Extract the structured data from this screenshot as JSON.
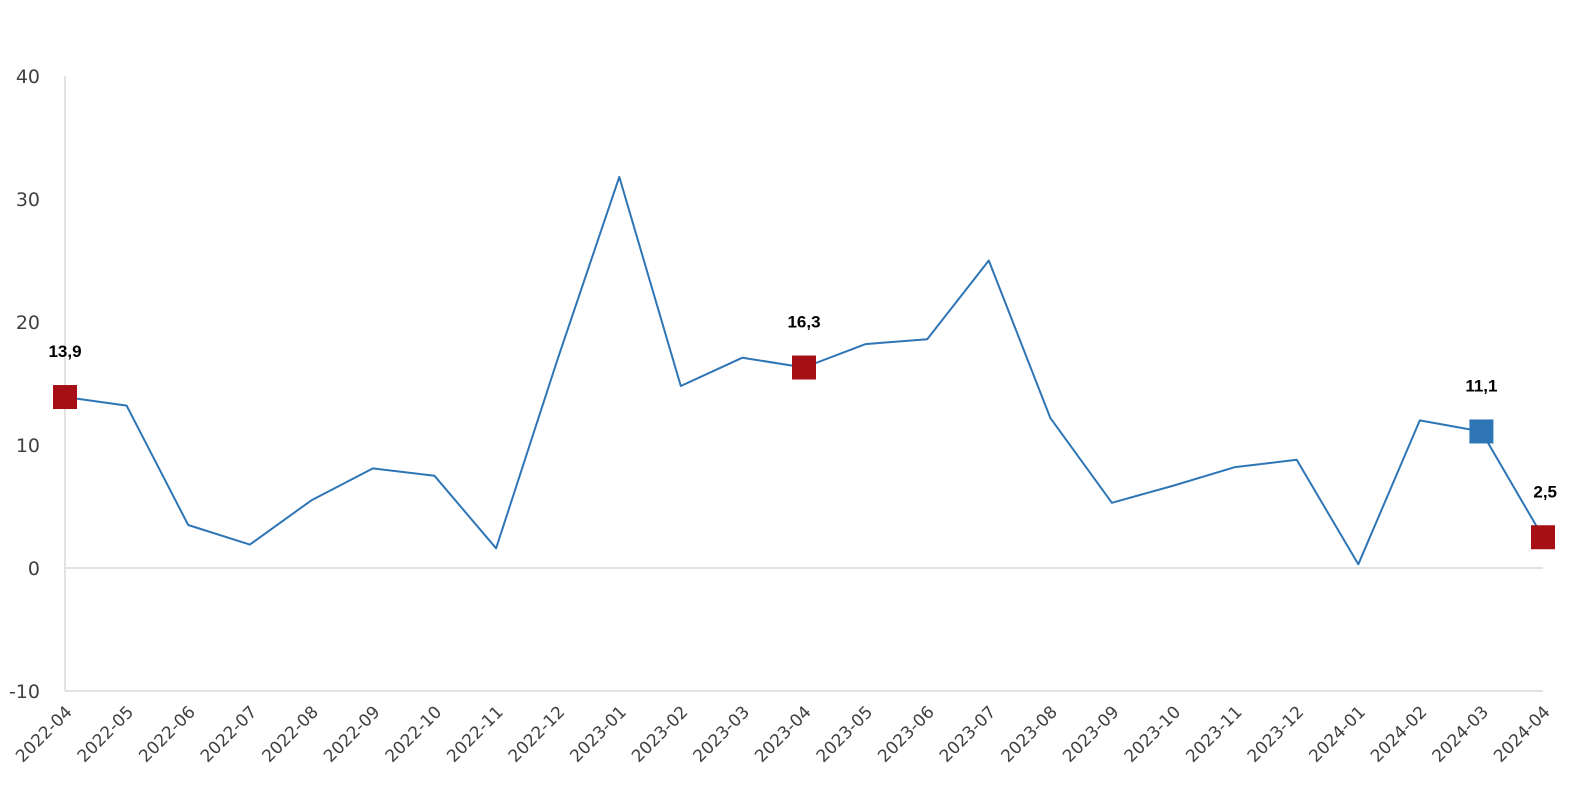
{
  "chart_data": {
    "type": "line",
    "title": "",
    "xlabel": "",
    "ylabel": "",
    "ylim": [
      -10,
      40
    ],
    "yticks": [
      "-10",
      "0",
      "10",
      "20",
      "30",
      "40"
    ],
    "grid": false,
    "legend": "none",
    "categories": [
      "2022-04",
      "2022-05",
      "2022-06",
      "2022-07",
      "2022-08",
      "2022-09",
      "2022-10",
      "2022-11",
      "2022-12",
      "2023-01",
      "2023-02",
      "2023-03",
      "2023-04",
      "2023-05",
      "2023-06",
      "2023-07",
      "2023-08",
      "2023-09",
      "2023-10",
      "2023-11",
      "2023-12",
      "2024-01",
      "2024-02",
      "2024-03",
      "2024-04"
    ],
    "series": [
      {
        "values": [
          13.9,
          13.2,
          3.5,
          1.9,
          5.5,
          8.1,
          7.5,
          1.6,
          17.0,
          31.8,
          14.8,
          17.1,
          16.3,
          18.2,
          18.6,
          25.0,
          12.2,
          5.3,
          6.7,
          8.2,
          8.8,
          0.3,
          12.0,
          11.1,
          2.5
        ],
        "color": "#2E75B6"
      }
    ],
    "highlighted_points": [
      {
        "category": "2022-04",
        "label": "13,9",
        "color": "#A50F15"
      },
      {
        "category": "2023-04",
        "label": "16,3",
        "color": "#A50F15"
      },
      {
        "category": "2024-03",
        "label": "11,1",
        "color": "#2E75B6"
      },
      {
        "category": "2024-04",
        "label": "2,5",
        "color": "#A50F15"
      }
    ]
  }
}
